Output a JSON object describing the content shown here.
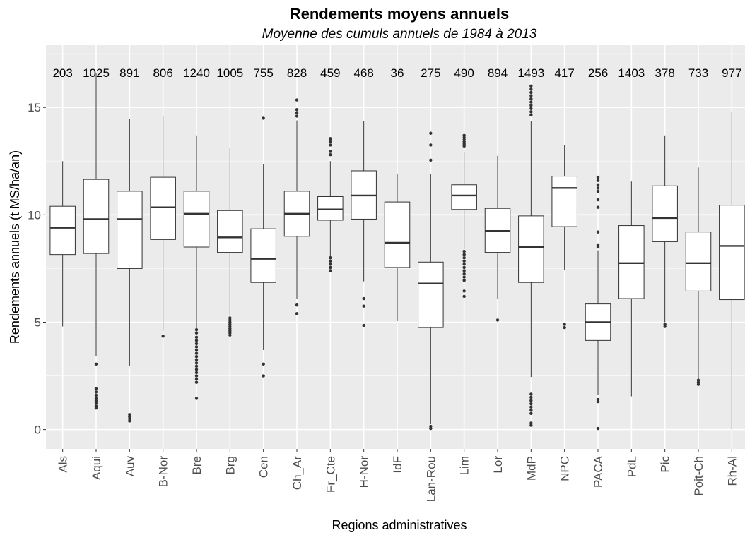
{
  "chart_data": {
    "type": "box",
    "title": "Rendements moyens annuels",
    "subtitle": "Moyenne des cumuls annuels de 1984 à 2013",
    "xlabel": "Regions administratives",
    "ylabel": "Rendements annuels (t MS/ha/an)",
    "ylim": [
      -0.9,
      17.9
    ],
    "yticks": [
      0,
      5,
      10,
      15
    ],
    "ytick_labels": [
      "0",
      "5",
      "10",
      "15"
    ],
    "grid": true,
    "categories": [
      "Als",
      "Aqui",
      "Auv",
      "B-Nor",
      "Bre",
      "Brg",
      "Cen",
      "Ch_Ar",
      "Fr_Cte",
      "H-Nor",
      "IdF",
      "Lan-Rou",
      "Lim",
      "Lor",
      "MdP",
      "NPC",
      "PACA",
      "PdL",
      "Pic",
      "Poit-Ch",
      "Rh-Al"
    ],
    "counts": [
      "203",
      "1025",
      "891",
      "806",
      "1240",
      "1005",
      "755",
      "828",
      "459",
      "468",
      "36",
      "275",
      "490",
      "894",
      "1493",
      "417",
      "256",
      "1403",
      "378",
      "733",
      "977"
    ],
    "boxes": [
      {
        "min": 4.8,
        "q1": 8.15,
        "median": 9.4,
        "q3": 10.4,
        "max": 12.5,
        "outliers": []
      },
      {
        "min": 3.4,
        "q1": 8.2,
        "median": 9.8,
        "q3": 11.65,
        "max": 16.6,
        "outliers": [
          3.05,
          1.9,
          1.75,
          1.6,
          1.45,
          1.35,
          1.25,
          1.1,
          1.0
        ]
      },
      {
        "min": 2.95,
        "q1": 7.5,
        "median": 9.8,
        "q3": 11.1,
        "max": 14.45,
        "outliers": [
          0.7,
          0.6,
          0.5,
          0.4
        ]
      },
      {
        "min": 4.6,
        "q1": 8.85,
        "median": 10.35,
        "q3": 11.75,
        "max": 14.6,
        "outliers": [
          4.35
        ]
      },
      {
        "min": 4.7,
        "q1": 8.5,
        "median": 10.05,
        "q3": 11.1,
        "max": 13.7,
        "outliers": [
          4.65,
          4.5,
          4.3,
          4.15,
          4.0,
          3.85,
          3.7,
          3.55,
          3.4,
          3.25,
          3.1,
          2.95,
          2.8,
          2.65,
          2.5,
          2.35,
          2.2,
          1.45
        ]
      },
      {
        "min": 5.3,
        "q1": 8.25,
        "median": 8.95,
        "q3": 10.2,
        "max": 13.1,
        "outliers": [
          5.2,
          5.1,
          5.0,
          4.9,
          4.8,
          4.7,
          4.6,
          4.5,
          4.4
        ]
      },
      {
        "min": 3.7,
        "q1": 6.85,
        "median": 7.95,
        "q3": 9.35,
        "max": 12.35,
        "outliers": [
          14.5,
          3.05,
          2.5
        ]
      },
      {
        "min": 6.1,
        "q1": 9.0,
        "median": 10.05,
        "q3": 11.1,
        "max": 14.4,
        "outliers": [
          15.35,
          14.9,
          14.75,
          14.6,
          5.8,
          5.4
        ]
      },
      {
        "min": 8.1,
        "q1": 9.75,
        "median": 10.25,
        "q3": 10.85,
        "max": 12.5,
        "outliers": [
          13.55,
          13.4,
          13.25,
          12.95,
          12.8,
          8.0,
          7.85,
          7.7,
          7.55,
          7.4
        ]
      },
      {
        "min": 6.9,
        "q1": 9.8,
        "median": 10.9,
        "q3": 12.05,
        "max": 14.35,
        "outliers": [
          6.1,
          5.75,
          4.85
        ]
      },
      {
        "min": 5.05,
        "q1": 7.55,
        "median": 8.7,
        "q3": 10.6,
        "max": 11.9,
        "outliers": []
      },
      {
        "min": 0.25,
        "q1": 4.75,
        "median": 6.8,
        "q3": 7.8,
        "max": 11.9,
        "outliers": [
          13.8,
          13.25,
          12.55,
          0.15,
          0.05
        ]
      },
      {
        "min": 8.4,
        "q1": 10.25,
        "median": 10.9,
        "q3": 11.4,
        "max": 12.95,
        "outliers": [
          13.7,
          13.6,
          13.5,
          13.4,
          13.3,
          13.2,
          8.3,
          8.15,
          8.0,
          7.85,
          7.7,
          7.55,
          7.4,
          7.25,
          7.1,
          6.95,
          6.45,
          6.2
        ]
      },
      {
        "min": 6.1,
        "q1": 8.25,
        "median": 9.25,
        "q3": 10.3,
        "max": 12.75,
        "outliers": [
          5.1
        ]
      },
      {
        "min": 2.45,
        "q1": 6.85,
        "median": 8.5,
        "q3": 9.95,
        "max": 14.35,
        "outliers": [
          16.0,
          15.85,
          15.7,
          15.55,
          15.4,
          15.25,
          15.1,
          14.95,
          14.8,
          14.65,
          1.65,
          1.5,
          1.35,
          1.2,
          1.05,
          0.9,
          0.75,
          0.3,
          0.2
        ]
      },
      {
        "min": 7.45,
        "q1": 9.45,
        "median": 11.25,
        "q3": 11.8,
        "max": 13.25,
        "outliers": [
          4.9,
          4.75
        ]
      },
      {
        "min": 1.6,
        "q1": 4.15,
        "median": 5.0,
        "q3": 5.85,
        "max": 8.35,
        "outliers": [
          11.75,
          11.6,
          11.4,
          11.25,
          11.1,
          10.7,
          10.35,
          9.2,
          8.6,
          8.5,
          1.4,
          1.3,
          0.05
        ]
      },
      {
        "min": 1.55,
        "q1": 6.1,
        "median": 7.75,
        "q3": 9.5,
        "max": 11.55,
        "outliers": []
      },
      {
        "min": 5.0,
        "q1": 8.75,
        "median": 9.85,
        "q3": 11.35,
        "max": 13.7,
        "outliers": [
          4.9,
          4.8
        ]
      },
      {
        "min": 2.35,
        "q1": 6.45,
        "median": 7.75,
        "q3": 9.2,
        "max": 12.2,
        "outliers": [
          2.3,
          2.2,
          2.1
        ]
      },
      {
        "min": 0.0,
        "q1": 6.05,
        "median": 8.55,
        "q3": 10.45,
        "max": 14.8,
        "outliers": []
      }
    ]
  }
}
